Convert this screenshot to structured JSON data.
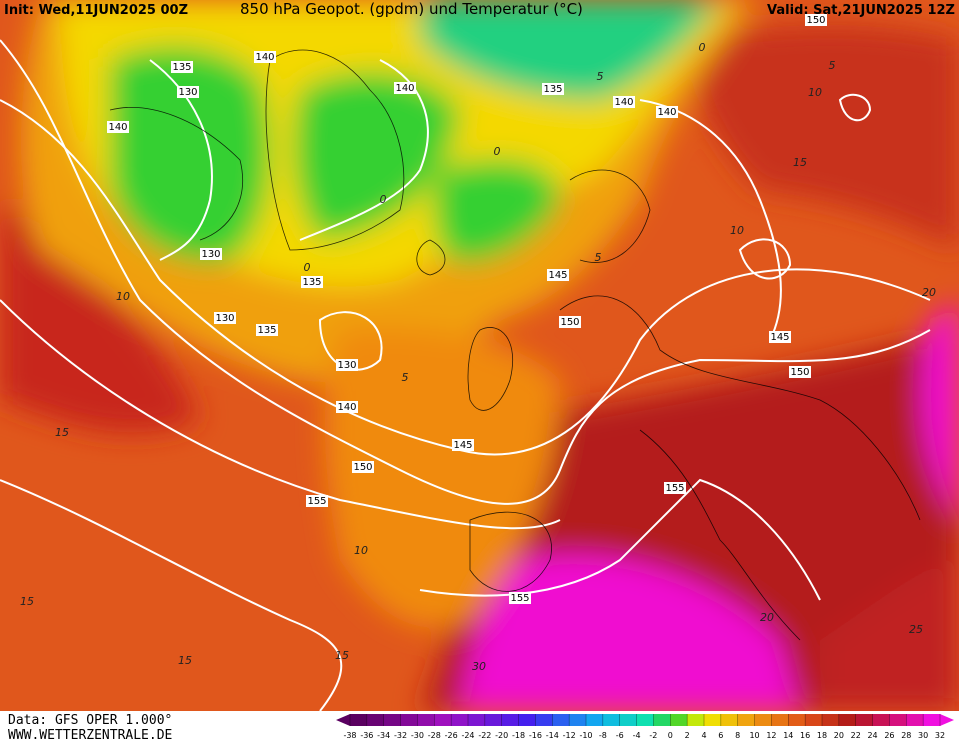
{
  "header": {
    "init": "Init: Wed,11JUN2025 00Z",
    "title": "850 hPa Geopot. (gpdm) und Temperatur (°C)",
    "valid": "Valid: Sat,21JUN2025 12Z"
  },
  "footer": {
    "source": "Data: GFS OPER 1.000°",
    "site": "WWW.WETTERZENTRALE.DE"
  },
  "geopotential_labels": [
    "140",
    "135",
    "130",
    "140",
    "140",
    "135",
    "140",
    "140",
    "150",
    "130",
    "135",
    "130",
    "135",
    "145",
    "150",
    "130",
    "140",
    "145",
    "150",
    "155",
    "155",
    "155",
    "145",
    "150"
  ],
  "temperature_labels": [
    "5",
    "0",
    "0",
    "0",
    "5",
    "10",
    "5",
    "15",
    "10",
    "15",
    "15",
    "15",
    "20",
    "25",
    "30",
    "10",
    "15",
    "10",
    "5",
    "20",
    "0"
  ],
  "colorbar": {
    "labels": [
      -38,
      -36,
      -34,
      -32,
      -30,
      -28,
      -26,
      -24,
      -22,
      -20,
      -18,
      -16,
      -14,
      -12,
      -10,
      -8,
      -6,
      -4,
      -2,
      0,
      2,
      4,
      6,
      8,
      10,
      12,
      14,
      16,
      18,
      20,
      22,
      24,
      26,
      28,
      30,
      32
    ]
  }
}
